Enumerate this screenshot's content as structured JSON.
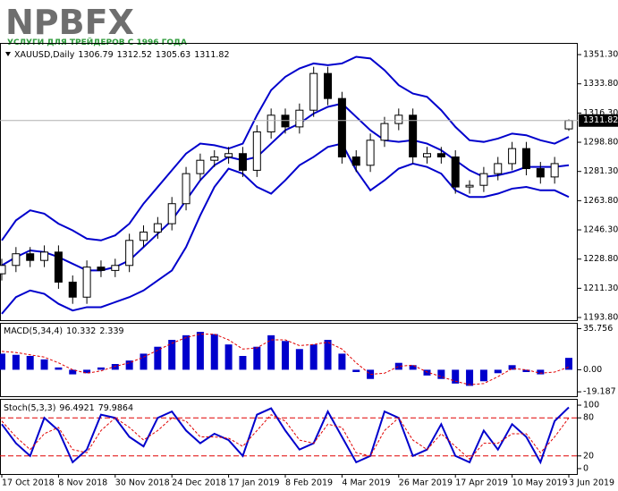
{
  "logo": {
    "name": "NPBFX",
    "tagline": "УСЛУГИ ДЛЯ ТРЕЙДЕРОВ С 1996 ГОДА"
  },
  "chart_data": [
    {
      "type": "candlestick",
      "symbol": "XAUUSD,Daily",
      "categories": [
        "17 Oct 2018",
        null,
        null,
        null,
        "8 Nov 2018",
        null,
        null,
        null,
        "30 Nov 2018",
        null,
        null,
        null,
        "24 Dec 2018",
        null,
        null,
        null,
        "17 Jan 2019",
        null,
        null,
        null,
        "8 Feb 2019",
        null,
        null,
        null,
        "4 Mar 2019",
        null,
        null,
        null,
        "26 Mar 2019",
        null,
        null,
        null,
        "17 Apr 2019",
        null,
        null,
        null,
        "10 May 2019",
        null,
        null,
        null,
        "3 Jun 2019"
      ],
      "open": [
        1220,
        1225,
        1232,
        1228,
        1233,
        1215,
        1206,
        1224,
        1222,
        1225,
        1240,
        1245,
        1250,
        1262,
        1280,
        1288,
        1290,
        1292,
        1282,
        1305,
        1315,
        1308,
        1318,
        1340,
        1325,
        1290,
        1285,
        1300,
        1310,
        1315,
        1290,
        1292,
        1290,
        1272,
        1273,
        1280,
        1286,
        1295,
        1283,
        1278,
        1306.79
      ],
      "high": [
        1229,
        1236,
        1236,
        1237,
        1237,
        1219,
        1228,
        1228,
        1229,
        1244,
        1249,
        1254,
        1266,
        1284,
        1292,
        1294,
        1296,
        1296,
        1309,
        1319,
        1319,
        1322,
        1344,
        1344,
        1329,
        1294,
        1304,
        1314,
        1319,
        1319,
        1296,
        1296,
        1294,
        1276,
        1284,
        1290,
        1299,
        1299,
        1287,
        1290,
        1312.52
      ],
      "low": [
        1216,
        1221,
        1224,
        1224,
        1211,
        1202,
        1202,
        1218,
        1218,
        1221,
        1236,
        1241,
        1246,
        1258,
        1276,
        1284,
        1286,
        1278,
        1278,
        1301,
        1304,
        1304,
        1314,
        1321,
        1286,
        1281,
        1281,
        1296,
        1306,
        1286,
        1286,
        1286,
        1268,
        1268,
        1269,
        1276,
        1282,
        1279,
        1274,
        1274,
        1305.63
      ],
      "close": [
        1225,
        1232,
        1228,
        1233,
        1215,
        1206,
        1224,
        1222,
        1225,
        1240,
        1245,
        1250,
        1262,
        1280,
        1288,
        1290,
        1292,
        1282,
        1305,
        1315,
        1308,
        1318,
        1340,
        1325,
        1290,
        1285,
        1300,
        1310,
        1315,
        1290,
        1292,
        1290,
        1272,
        1273,
        1280,
        1286,
        1295,
        1283,
        1278,
        1286,
        1311.82
      ],
      "overlays": [
        {
          "color": "#0000cc",
          "values": [
            1240,
            1252,
            1258,
            1256,
            1250,
            1246,
            1241,
            1240,
            1243,
            1250,
            1262,
            1272,
            1282,
            1292,
            1298,
            1297,
            1295,
            1298,
            1315,
            1330,
            1338,
            1343,
            1346,
            1345,
            1346,
            1350,
            1349,
            1342,
            1333,
            1328,
            1326,
            1318,
            1308,
            1300,
            1299,
            1301,
            1304,
            1303,
            1300,
            1298,
            1302
          ]
        },
        {
          "color": "#0000cc",
          "values": [
            1225,
            1230,
            1234,
            1233,
            1230,
            1226,
            1222,
            1222,
            1224,
            1228,
            1236,
            1244,
            1252,
            1264,
            1276,
            1285,
            1290,
            1288,
            1290,
            1298,
            1306,
            1310,
            1316,
            1320,
            1322,
            1314,
            1306,
            1300,
            1299,
            1300,
            1298,
            1294,
            1288,
            1282,
            1278,
            1279,
            1281,
            1284,
            1284,
            1284,
            1285
          ]
        },
        {
          "color": "#0000cc",
          "values": [
            1196,
            1206,
            1210,
            1208,
            1202,
            1198,
            1200,
            1200,
            1203,
            1206,
            1210,
            1216,
            1222,
            1236,
            1255,
            1272,
            1283,
            1280,
            1272,
            1268,
            1276,
            1285,
            1290,
            1296,
            1298,
            1282,
            1270,
            1276,
            1283,
            1286,
            1284,
            1280,
            1270,
            1266,
            1266,
            1268,
            1271,
            1272,
            1270,
            1270,
            1266
          ]
        }
      ],
      "ylim": [
        1192.2,
        1358.3
      ],
      "yticks": [
        {
          "value": 1351.3,
          "label": "1351.30"
        },
        {
          "value": 1333.8,
          "label": "1333.80"
        },
        {
          "value": 1316.3,
          "label": "1316.30"
        },
        {
          "value": 1298.8,
          "label": "1298.80"
        },
        {
          "value": 1281.3,
          "label": "1281.30"
        },
        {
          "value": 1263.8,
          "label": "1263.80"
        },
        {
          "value": 1246.3,
          "label": "1246.30"
        },
        {
          "value": 1228.8,
          "label": "1228.80"
        },
        {
          "value": 1211.3,
          "label": "1211.30"
        },
        {
          "value": 1193.8,
          "label": "1193.80"
        }
      ]
    },
    {
      "type": "macd",
      "title": "MACD(5,34,4)",
      "values": [
        14,
        13,
        12,
        9,
        2,
        -4,
        -3,
        2,
        5,
        8,
        14,
        20,
        26,
        30,
        33,
        31,
        22,
        12,
        20,
        30,
        25,
        18,
        22,
        26,
        14,
        -2,
        -8,
        0,
        6,
        4,
        -5,
        -8,
        -12,
        -14,
        -10,
        -3,
        4,
        -2,
        -4,
        0,
        10.332
      ],
      "signal": [
        16,
        15,
        13,
        11,
        6,
        0,
        -3,
        -1,
        3,
        6,
        11,
        17,
        23,
        28,
        31,
        31,
        26,
        18,
        19,
        26,
        26,
        21,
        22,
        24,
        18,
        6,
        -4,
        -3,
        3,
        4,
        -2,
        -6,
        -10,
        -13,
        -12,
        -6,
        1,
        0,
        -3,
        -2,
        2.339
      ],
      "color": "#0000cc",
      "signal_color": "#e00000",
      "ylim": [
        -23,
        40
      ],
      "yticks": [
        35.756,
        {
          "value": 0,
          "label": "0.00"
        },
        -19.187
      ]
    },
    {
      "type": "stochastic",
      "title": "Stoch(5,3,3)",
      "values": [
        70,
        40,
        20,
        80,
        60,
        10,
        30,
        85,
        80,
        50,
        35,
        80,
        90,
        60,
        40,
        55,
        45,
        20,
        85,
        95,
        60,
        30,
        40,
        90,
        50,
        10,
        20,
        90,
        80,
        20,
        30,
        70,
        20,
        10,
        60,
        30,
        70,
        50,
        10,
        75,
        96.4921
      ],
      "signal": [
        75,
        50,
        30,
        55,
        65,
        30,
        25,
        60,
        80,
        65,
        45,
        60,
        80,
        75,
        50,
        50,
        48,
        35,
        60,
        85,
        75,
        45,
        40,
        70,
        65,
        25,
        20,
        60,
        80,
        45,
        30,
        55,
        35,
        15,
        40,
        40,
        55,
        55,
        25,
        50,
        79.9864
      ],
      "color": "#0000cc",
      "signal_color": "#e00000",
      "levels": [
        80,
        20
      ],
      "ylim": [
        -8.5,
        108.5
      ],
      "yticks": [
        100,
        80,
        20,
        0
      ]
    }
  ]
}
